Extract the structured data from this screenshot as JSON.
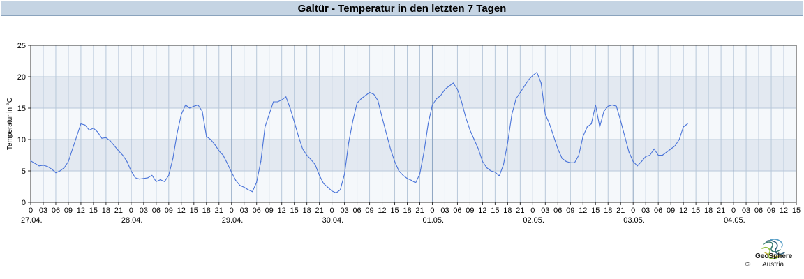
{
  "title": "Galtür - Temperatur in den letzten 7 Tagen",
  "logo": {
    "name": "GeoSphere",
    "sub": "Austria",
    "copyright": "©"
  },
  "chart_data": {
    "type": "line",
    "title": "Galtür - Temperatur in den letzten 7 Tagen",
    "ylabel": "Temperatur in °C",
    "xlabel": "",
    "ylim": [
      0,
      25
    ],
    "yticks": [
      0,
      5,
      10,
      15,
      20,
      25
    ],
    "xlim_hours": [
      0,
      183
    ],
    "hour_tick_labels": [
      "0",
      "03",
      "06",
      "09",
      "12",
      "15",
      "18",
      "21"
    ],
    "date_labels": [
      "27.04.",
      "28.04.",
      "29.04.",
      "30.04.",
      "01.05.",
      "02.05.",
      "03.05.",
      "04.05."
    ],
    "grid": true,
    "line_color": "#4a74d9",
    "band_color": "#e3e9f1",
    "series": [
      {
        "points": [
          [
            0,
            6.6
          ],
          [
            1,
            6.2
          ],
          [
            2,
            5.8
          ],
          [
            3,
            5.9
          ],
          [
            4,
            5.7
          ],
          [
            5,
            5.3
          ],
          [
            6,
            4.7
          ],
          [
            7,
            5.0
          ],
          [
            8,
            5.5
          ],
          [
            9,
            6.5
          ],
          [
            10,
            8.5
          ],
          [
            11,
            10.5
          ],
          [
            12,
            12.5
          ],
          [
            13,
            12.3
          ],
          [
            14,
            11.5
          ],
          [
            15,
            11.8
          ],
          [
            16,
            11.2
          ],
          [
            17,
            10.2
          ],
          [
            18,
            10.3
          ],
          [
            19,
            9.8
          ],
          [
            20,
            9.0
          ],
          [
            21,
            8.2
          ],
          [
            22,
            7.5
          ],
          [
            23,
            6.5
          ],
          [
            24,
            5.0
          ],
          [
            25,
            3.9
          ],
          [
            26,
            3.7
          ],
          [
            27,
            3.8
          ],
          [
            28,
            3.9
          ],
          [
            29,
            4.3
          ],
          [
            30,
            3.3
          ],
          [
            31,
            3.6
          ],
          [
            32,
            3.3
          ],
          [
            33,
            4.3
          ],
          [
            34,
            7.0
          ],
          [
            35,
            11.0
          ],
          [
            36,
            14.0
          ],
          [
            37,
            15.5
          ],
          [
            38,
            15.0
          ],
          [
            39,
            15.3
          ],
          [
            40,
            15.5
          ],
          [
            41,
            14.5
          ],
          [
            42,
            10.5
          ],
          [
            43,
            10.0
          ],
          [
            44,
            9.2
          ],
          [
            45,
            8.2
          ],
          [
            46,
            7.5
          ],
          [
            47,
            6.2
          ],
          [
            48,
            4.8
          ],
          [
            49,
            3.5
          ],
          [
            50,
            2.7
          ],
          [
            51,
            2.4
          ],
          [
            52,
            2.0
          ],
          [
            53,
            1.7
          ],
          [
            54,
            3.2
          ],
          [
            55,
            6.5
          ],
          [
            56,
            12.0
          ],
          [
            57,
            14.0
          ],
          [
            58,
            16.0
          ],
          [
            59,
            16.0
          ],
          [
            60,
            16.3
          ],
          [
            61,
            16.8
          ],
          [
            62,
            15.0
          ],
          [
            63,
            12.8
          ],
          [
            64,
            10.5
          ],
          [
            65,
            8.5
          ],
          [
            66,
            7.5
          ],
          [
            67,
            6.8
          ],
          [
            68,
            6.0
          ],
          [
            69,
            4.3
          ],
          [
            70,
            3.0
          ],
          [
            71,
            2.4
          ],
          [
            72,
            1.8
          ],
          [
            73,
            1.5
          ],
          [
            74,
            2.0
          ],
          [
            75,
            4.5
          ],
          [
            76,
            9.5
          ],
          [
            77,
            13.0
          ],
          [
            78,
            15.8
          ],
          [
            79,
            16.5
          ],
          [
            80,
            17.0
          ],
          [
            81,
            17.5
          ],
          [
            82,
            17.2
          ],
          [
            83,
            16.2
          ],
          [
            84,
            13.5
          ],
          [
            85,
            11.0
          ],
          [
            86,
            8.5
          ],
          [
            87,
            6.5
          ],
          [
            88,
            5.0
          ],
          [
            89,
            4.3
          ],
          [
            90,
            3.8
          ],
          [
            91,
            3.5
          ],
          [
            92,
            3.1
          ],
          [
            93,
            4.5
          ],
          [
            94,
            8.0
          ],
          [
            95,
            12.5
          ],
          [
            96,
            15.5
          ],
          [
            97,
            16.5
          ],
          [
            98,
            17.0
          ],
          [
            99,
            18.0
          ],
          [
            100,
            18.5
          ],
          [
            101,
            19.0
          ],
          [
            102,
            18.0
          ],
          [
            103,
            16.0
          ],
          [
            104,
            13.5
          ],
          [
            105,
            11.5
          ],
          [
            106,
            10.0
          ],
          [
            107,
            8.5
          ],
          [
            108,
            6.5
          ],
          [
            109,
            5.5
          ],
          [
            110,
            5.0
          ],
          [
            111,
            4.8
          ],
          [
            112,
            4.2
          ],
          [
            113,
            6.0
          ],
          [
            114,
            9.5
          ],
          [
            115,
            14.0
          ],
          [
            116,
            16.5
          ],
          [
            117,
            17.5
          ],
          [
            118,
            18.5
          ],
          [
            119,
            19.5
          ],
          [
            120,
            20.2
          ],
          [
            121,
            20.7
          ],
          [
            122,
            19.0
          ],
          [
            123,
            14.0
          ],
          [
            124,
            12.5
          ],
          [
            125,
            10.5
          ],
          [
            126,
            8.5
          ],
          [
            127,
            7.0
          ],
          [
            128,
            6.5
          ],
          [
            129,
            6.3
          ],
          [
            130,
            6.3
          ],
          [
            131,
            7.5
          ],
          [
            132,
            10.5
          ],
          [
            133,
            12.0
          ],
          [
            134,
            12.5
          ],
          [
            135,
            15.5
          ],
          [
            136,
            12.0
          ],
          [
            137,
            14.5
          ],
          [
            138,
            15.3
          ],
          [
            139,
            15.5
          ],
          [
            140,
            15.3
          ],
          [
            141,
            13.0
          ],
          [
            142,
            10.5
          ],
          [
            143,
            8.0
          ],
          [
            144,
            6.5
          ],
          [
            145,
            5.8
          ],
          [
            146,
            6.5
          ],
          [
            147,
            7.3
          ],
          [
            148,
            7.5
          ],
          [
            149,
            8.5
          ],
          [
            150,
            7.5
          ],
          [
            151,
            7.5
          ],
          [
            152,
            8.0
          ],
          [
            153,
            8.5
          ],
          [
            154,
            9.0
          ],
          [
            155,
            10.0
          ],
          [
            156,
            12.0
          ],
          [
            157,
            12.5
          ]
        ]
      }
    ]
  }
}
